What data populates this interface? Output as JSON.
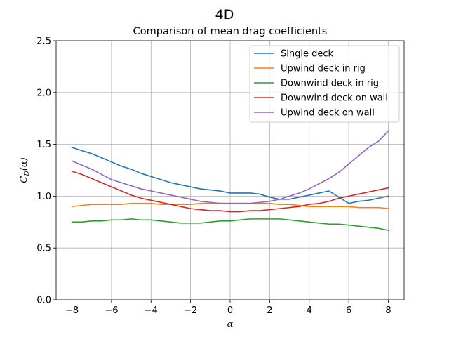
{
  "figure": {
    "suptitle": "4D"
  },
  "chart_data": {
    "type": "line",
    "title": "Comparison of mean drag coefficients",
    "xlabel": "α",
    "ylabel_main": "C",
    "ylabel_sub": "D",
    "ylabel_tail": "(α)",
    "xlim": [
      -8.8,
      8.8
    ],
    "ylim": [
      0.0,
      2.5
    ],
    "xticks": [
      -8,
      -6,
      -4,
      -2,
      0,
      2,
      4,
      6,
      8
    ],
    "xtick_labels": [
      "−8",
      "−6",
      "−4",
      "−2",
      "0",
      "2",
      "4",
      "6",
      "8"
    ],
    "yticks": [
      0.0,
      0.5,
      1.0,
      1.5,
      2.0,
      2.5
    ],
    "ytick_labels": [
      "0.0",
      "0.5",
      "1.0",
      "1.5",
      "2.0",
      "2.5"
    ],
    "grid": true,
    "legend_position": "top-right",
    "x": [
      -8,
      -7.5,
      -7,
      -6.5,
      -6,
      -5.5,
      -5,
      -4.5,
      -4,
      -3.5,
      -3,
      -2.5,
      -2,
      -1.5,
      -1,
      -0.5,
      0,
      0.5,
      1,
      1.5,
      2,
      2.5,
      3,
      3.5,
      4,
      4.5,
      5,
      5.5,
      6,
      6.5,
      7,
      7.5,
      8
    ],
    "series": [
      {
        "name": "Single deck",
        "color": "#1f77b4",
        "values": [
          1.47,
          1.44,
          1.41,
          1.37,
          1.33,
          1.29,
          1.26,
          1.22,
          1.19,
          1.16,
          1.13,
          1.11,
          1.09,
          1.07,
          1.06,
          1.05,
          1.03,
          1.03,
          1.03,
          1.02,
          0.99,
          0.97,
          0.97,
          0.99,
          1.01,
          1.03,
          1.05,
          0.99,
          0.93,
          0.95,
          0.96,
          0.98,
          1.0
        ]
      },
      {
        "name": "Upwind deck in rig",
        "color": "#ff7f0e",
        "values": [
          0.9,
          0.91,
          0.92,
          0.92,
          0.92,
          0.92,
          0.93,
          0.93,
          0.93,
          0.92,
          0.92,
          0.92,
          0.92,
          0.93,
          0.93,
          0.93,
          0.93,
          0.93,
          0.93,
          0.93,
          0.93,
          0.92,
          0.92,
          0.91,
          0.9,
          0.9,
          0.9,
          0.9,
          0.9,
          0.89,
          0.89,
          0.89,
          0.88
        ]
      },
      {
        "name": "Downwind deck in rig",
        "color": "#2ca02c",
        "values": [
          0.75,
          0.75,
          0.76,
          0.76,
          0.77,
          0.77,
          0.78,
          0.77,
          0.77,
          0.76,
          0.75,
          0.74,
          0.74,
          0.74,
          0.75,
          0.76,
          0.76,
          0.77,
          0.78,
          0.78,
          0.78,
          0.78,
          0.77,
          0.76,
          0.75,
          0.74,
          0.73,
          0.73,
          0.72,
          0.71,
          0.7,
          0.69,
          0.67
        ]
      },
      {
        "name": "Downwind deck on wall",
        "color": "#d62728",
        "values": [
          1.24,
          1.21,
          1.17,
          1.13,
          1.09,
          1.05,
          1.01,
          0.98,
          0.96,
          0.94,
          0.92,
          0.9,
          0.88,
          0.87,
          0.86,
          0.86,
          0.85,
          0.85,
          0.86,
          0.86,
          0.87,
          0.88,
          0.89,
          0.9,
          0.92,
          0.93,
          0.95,
          0.98,
          1.0,
          1.02,
          1.04,
          1.06,
          1.08
        ]
      },
      {
        "name": "Upwind deck on wall",
        "color": "#9467bd",
        "values": [
          1.34,
          1.3,
          1.26,
          1.21,
          1.16,
          1.13,
          1.1,
          1.07,
          1.05,
          1.03,
          1.01,
          0.99,
          0.97,
          0.95,
          0.94,
          0.93,
          0.93,
          0.93,
          0.93,
          0.94,
          0.95,
          0.97,
          1.0,
          1.03,
          1.07,
          1.12,
          1.17,
          1.23,
          1.31,
          1.39,
          1.47,
          1.53,
          1.63
        ]
      }
    ]
  }
}
